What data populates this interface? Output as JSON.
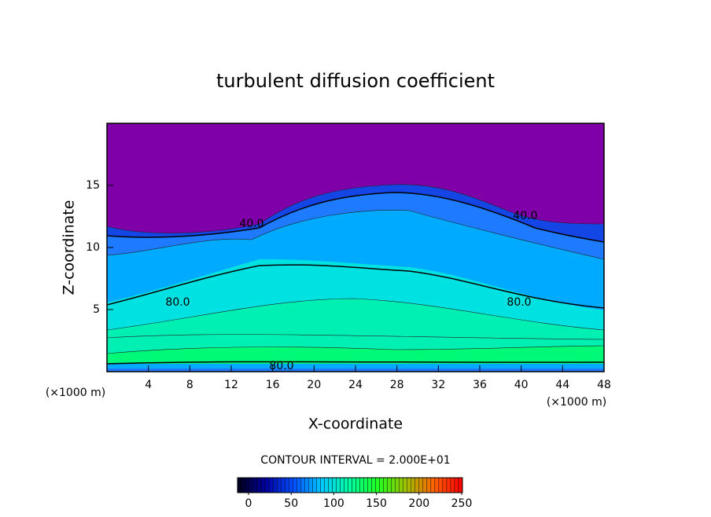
{
  "chart_data": {
    "type": "contour",
    "title": "turbulent diffusion coefficient",
    "xlabel": "X-coordinate",
    "ylabel": "Z-coordinate",
    "x_unit_label": "(×1000 m)",
    "xlim": [
      0,
      48
    ],
    "xticks": [
      4,
      8,
      12,
      16,
      20,
      24,
      28,
      32,
      36,
      40,
      44,
      48
    ],
    "ylim": [
      0,
      20
    ],
    "yticks": [
      5,
      10,
      15
    ],
    "background_color": "#7f00a8",
    "field": [
      {
        "level": 20,
        "color": "#1446e6"
      },
      {
        "level": 40,
        "color": "#1e7aff"
      },
      {
        "level": 60,
        "color": "#00aaff"
      },
      {
        "level": 80,
        "color": "#00e2e2"
      },
      {
        "level": 100,
        "color": "#00f0b4"
      },
      {
        "level": 120,
        "color": "#00fa78"
      }
    ],
    "contour_lines": [
      {
        "value": 40,
        "label": "40.0"
      },
      {
        "value": 80,
        "label": "80.0"
      }
    ],
    "contour_interval_label": "CONTOUR INTERVAL = 2.000E+01",
    "colorbar": {
      "lim": [
        0,
        250
      ],
      "ticks": [
        0,
        50,
        100,
        150,
        200,
        250
      ],
      "colormap": [
        "#000018",
        "#0000a0",
        "#0050ff",
        "#00c8ff",
        "#00ffa0",
        "#20ff20",
        "#a0c000",
        "#ff6000",
        "#ff0000"
      ]
    }
  }
}
